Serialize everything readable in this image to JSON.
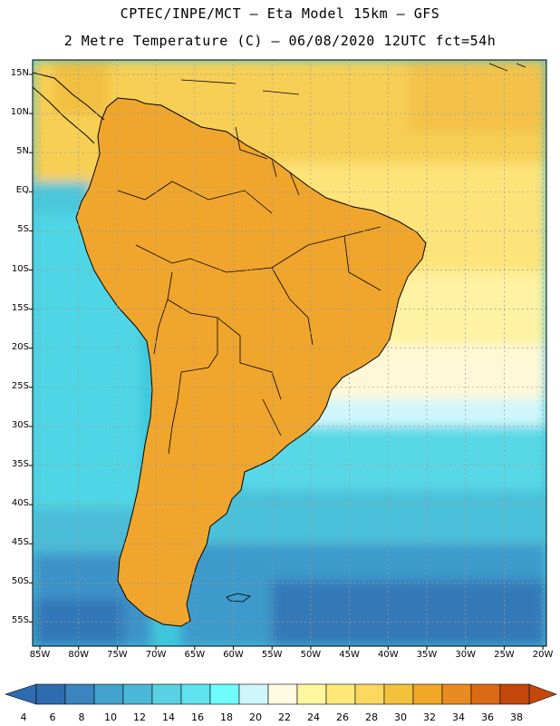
{
  "header": {
    "title_line1": "CPTEC/INPE/MCT –  Eta Model 15km – GFS",
    "title_line2": "2 Metre Temperature (C) – 06/08/2020 12UTC fct=54h"
  },
  "map": {
    "latitude_labels": [
      "15N",
      "10N",
      "5N",
      "EQ",
      "5S",
      "10S",
      "15S",
      "20S",
      "25S",
      "30S",
      "35S",
      "40S",
      "45S",
      "50S",
      "55S"
    ],
    "longitude_labels": [
      "85W",
      "80W",
      "75W",
      "70W",
      "65W",
      "60W",
      "55W",
      "50W",
      "45W",
      "40W",
      "35W",
      "30W",
      "25W",
      "20W"
    ],
    "colors": {
      "ocean_atlantic": "#40d2e2",
      "ocean_pacific": "#58dcec",
      "land_frame": "#000000",
      "grid": "#9a9a9a"
    }
  },
  "colorbar": {
    "ticks": [
      "4",
      "6",
      "8",
      "10",
      "12",
      "14",
      "16",
      "18",
      "20",
      "22",
      "24",
      "26",
      "28",
      "30",
      "32",
      "34",
      "36",
      "38"
    ],
    "colors": [
      "#2e6bb0",
      "#3a84c0",
      "#43a2cd",
      "#4cb8d8",
      "#58d2e2",
      "#5fe3ee",
      "#6efcfc",
      "#cff6fa",
      "#fffbe2",
      "#fff7a0",
      "#fde878",
      "#fbd860",
      "#f2c23c",
      "#f0a826",
      "#e88c20",
      "#dc6a14",
      "#c4480c"
    ],
    "low_arrow_color": "#2e6bb0",
    "high_arrow_color": "#c4480c"
  }
}
